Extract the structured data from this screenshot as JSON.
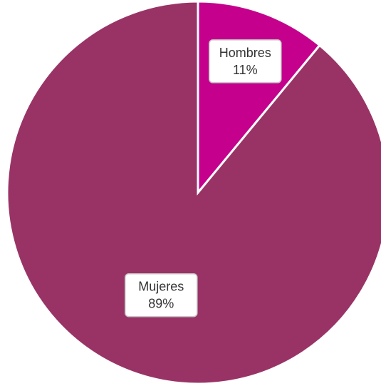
{
  "chart_data": {
    "type": "pie",
    "title": "",
    "slices": [
      {
        "label": "Hombres",
        "value": 11,
        "display": "11%",
        "color": "#c4008c"
      },
      {
        "label": "Mujeres",
        "value": 89,
        "display": "89%",
        "color": "#993366"
      }
    ],
    "start_angle_deg": -90,
    "direction": "clockwise"
  }
}
